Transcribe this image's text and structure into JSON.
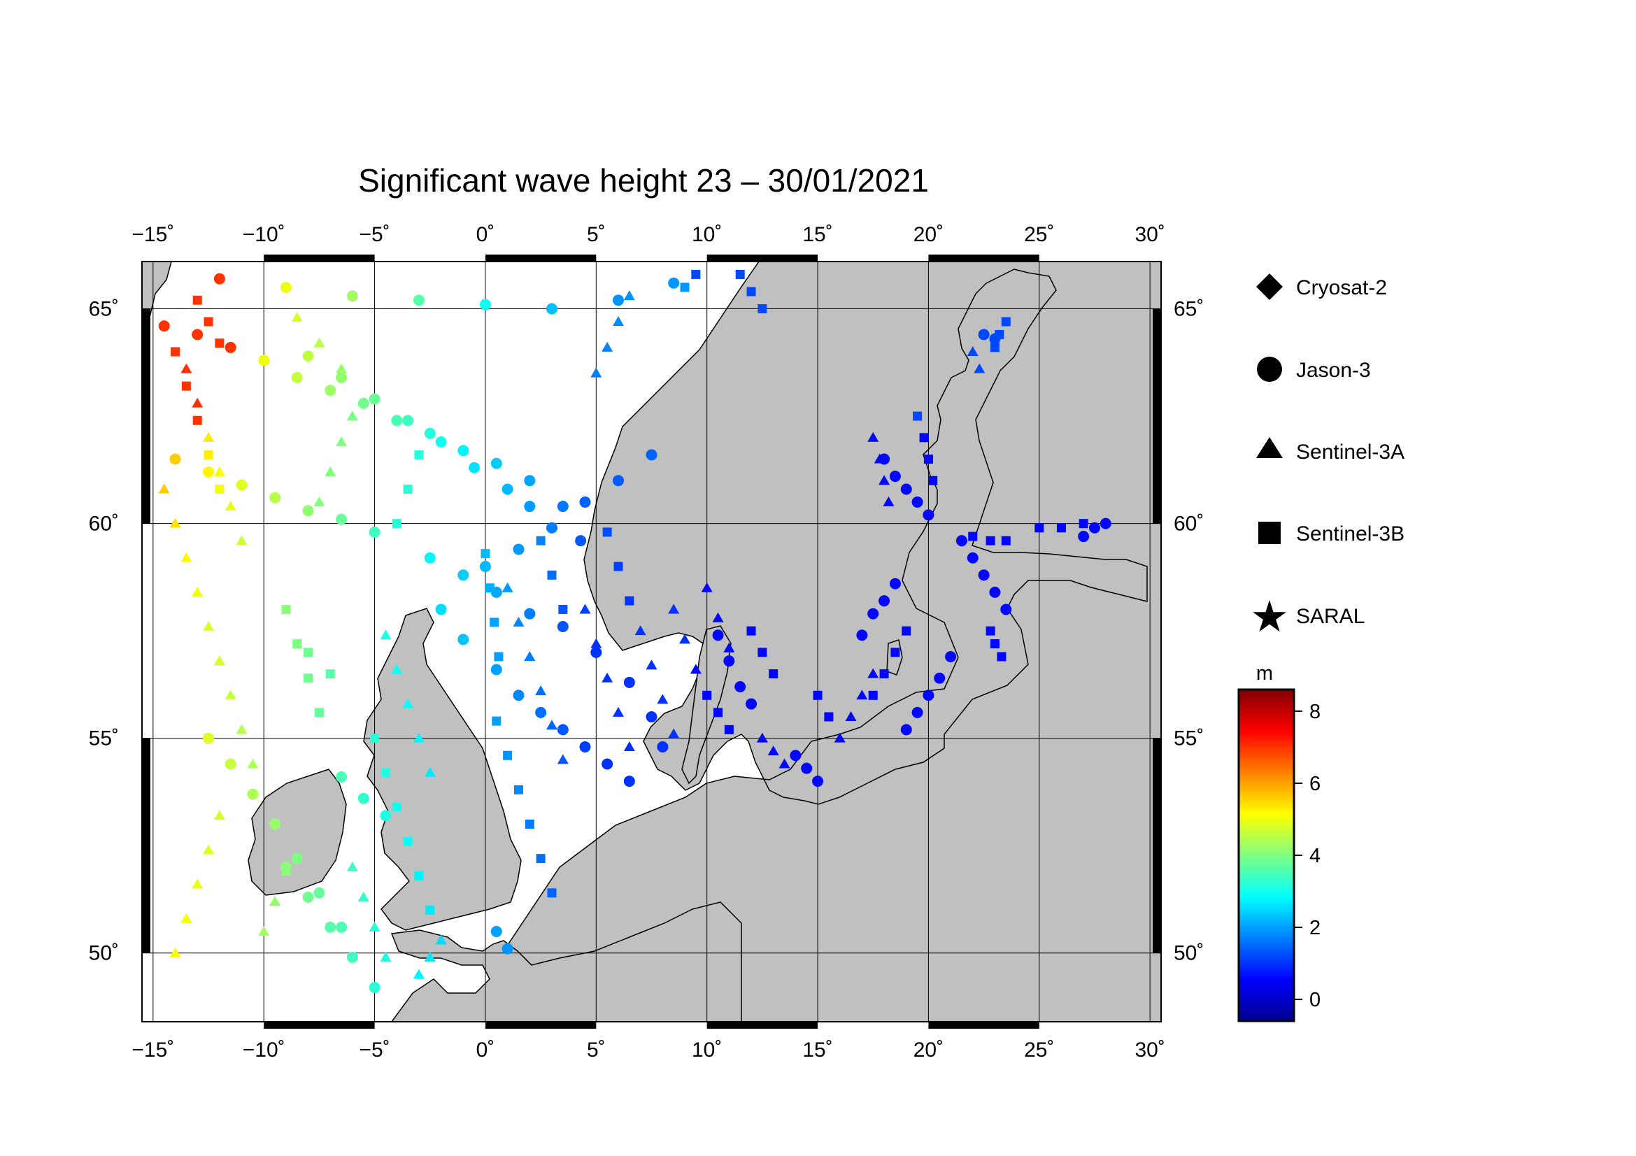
{
  "title": "Significant wave height 23 – 30/01/2021",
  "lon_ticks": [
    {
      "value": -15,
      "label": "−15˚"
    },
    {
      "value": -10,
      "label": "−10˚"
    },
    {
      "value": -5,
      "label": "−5˚"
    },
    {
      "value": 0,
      "label": "0˚"
    },
    {
      "value": 5,
      "label": "5˚"
    },
    {
      "value": 10,
      "label": "10˚"
    },
    {
      "value": 15,
      "label": "15˚"
    },
    {
      "value": 20,
      "label": "20˚"
    },
    {
      "value": 25,
      "label": "25˚"
    },
    {
      "value": 30,
      "label": "30˚"
    }
  ],
  "lat_ticks": [
    {
      "value": 65,
      "label": "65˚"
    },
    {
      "value": 60,
      "label": "60˚"
    },
    {
      "value": 55,
      "label": "55˚"
    },
    {
      "value": 50,
      "label": "50˚"
    }
  ],
  "legend": [
    {
      "label": "Cryosat-2",
      "icon": "diamond-icon"
    },
    {
      "label": "Jason-3",
      "icon": "circle-icon"
    },
    {
      "label": "Sentinel-3A",
      "icon": "triangle-icon"
    },
    {
      "label": "Sentinel-3B",
      "icon": "square-icon"
    },
    {
      "label": "SARAL",
      "icon": "star-icon"
    }
  ],
  "colorbar": {
    "unit": "m",
    "min": -0.6,
    "max": 8.6,
    "ticks": [
      {
        "value": 8,
        "label": "8"
      },
      {
        "value": 6,
        "label": "6"
      },
      {
        "value": 4,
        "label": "4"
      },
      {
        "value": 2,
        "label": "2"
      },
      {
        "value": 0,
        "label": "0"
      }
    ],
    "colors": [
      "#00008f",
      "#0000ff",
      "#0080ff",
      "#00ffff",
      "#80ff80",
      "#ffff00",
      "#ff8000",
      "#ff0000",
      "#800000"
    ]
  },
  "colors": {
    "land": "#c0c0c0",
    "sea": "#ffffff",
    "frame": "#000000"
  },
  "chart_data": {
    "type": "scatter",
    "title": "Significant wave height 23 – 30/01/2021",
    "xlim": [
      -15.5,
      30.5
    ],
    "ylim": [
      48.4,
      66.1
    ],
    "grid": true,
    "legend_position": "right",
    "series": [
      {
        "name": "Cryosat-2",
        "marker": "diamond",
        "points": []
      },
      {
        "name": "SARAL",
        "marker": "star",
        "points": []
      },
      {
        "name": "Jason-3",
        "marker": "circle",
        "points": [
          [
            -14.5,
            64.6
          ],
          [
            -13.0,
            64.4
          ],
          [
            -11.5,
            64.1
          ],
          [
            -10.0,
            63.8
          ],
          [
            -8.5,
            63.4
          ],
          [
            -7.0,
            63.1
          ],
          [
            -5.5,
            62.8
          ],
          [
            -4.0,
            62.4
          ],
          [
            -2.5,
            62.1
          ],
          [
            -1.0,
            61.7
          ],
          [
            0.5,
            61.4
          ],
          [
            2.0,
            61.0
          ],
          [
            3.5,
            60.4
          ],
          [
            4.3,
            59.6
          ],
          [
            -12.0,
            65.7
          ],
          [
            -9.0,
            65.5
          ],
          [
            -6.0,
            65.3
          ],
          [
            -3.0,
            65.2
          ],
          [
            0.0,
            65.1
          ],
          [
            3.0,
            65.0
          ],
          [
            6.0,
            65.2
          ],
          [
            8.5,
            65.6
          ],
          [
            -14.0,
            61.5
          ],
          [
            -12.5,
            61.2
          ],
          [
            -11.0,
            60.9
          ],
          [
            -9.5,
            60.6
          ],
          [
            -8.0,
            60.3
          ],
          [
            -6.5,
            60.1
          ],
          [
            -5.0,
            59.8
          ],
          [
            -2.5,
            59.2
          ],
          [
            -1.0,
            58.8
          ],
          [
            0.5,
            58.4
          ],
          [
            2.0,
            57.9
          ],
          [
            3.5,
            57.6
          ],
          [
            5.0,
            57.0
          ],
          [
            6.5,
            56.3
          ],
          [
            7.5,
            55.5
          ],
          [
            8.0,
            54.8
          ],
          [
            -2.0,
            58.0
          ],
          [
            -1.0,
            57.3
          ],
          [
            0.5,
            56.6
          ],
          [
            1.5,
            56.0
          ],
          [
            2.5,
            55.6
          ],
          [
            3.5,
            55.2
          ],
          [
            4.5,
            54.8
          ],
          [
            5.5,
            54.4
          ],
          [
            6.5,
            54.0
          ],
          [
            -8.0,
            63.9
          ],
          [
            -6.5,
            63.4
          ],
          [
            -5.0,
            62.9
          ],
          [
            -3.5,
            62.4
          ],
          [
            -2.0,
            61.9
          ],
          [
            -0.5,
            61.3
          ],
          [
            1.0,
            60.8
          ],
          [
            2.0,
            60.4
          ],
          [
            0.0,
            59.0
          ],
          [
            1.5,
            59.4
          ],
          [
            3.0,
            59.9
          ],
          [
            4.5,
            60.5
          ],
          [
            6.0,
            61.0
          ],
          [
            7.5,
            61.6
          ],
          [
            10.5,
            57.4
          ],
          [
            11.0,
            56.8
          ],
          [
            11.5,
            56.2
          ],
          [
            12.0,
            55.8
          ],
          [
            14.0,
            54.6
          ],
          [
            14.5,
            54.3
          ],
          [
            15.0,
            54.0
          ],
          [
            17.0,
            57.4
          ],
          [
            17.5,
            57.9
          ],
          [
            18.0,
            58.2
          ],
          [
            18.5,
            58.6
          ],
          [
            18.0,
            61.5
          ],
          [
            18.5,
            61.1
          ],
          [
            19.0,
            60.8
          ],
          [
            19.5,
            60.5
          ],
          [
            20.0,
            60.2
          ],
          [
            21.5,
            59.6
          ],
          [
            22.0,
            59.2
          ],
          [
            22.5,
            58.8
          ],
          [
            23.0,
            58.4
          ],
          [
            23.5,
            58.0
          ],
          [
            27.0,
            59.7
          ],
          [
            27.5,
            59.9
          ],
          [
            28.0,
            60.0
          ],
          [
            22.5,
            64.4
          ],
          [
            23.0,
            64.3
          ],
          [
            -9.0,
            52.0
          ],
          [
            -8.0,
            51.3
          ],
          [
            -7.0,
            50.6
          ],
          [
            -6.0,
            49.9
          ],
          [
            -5.0,
            49.2
          ],
          [
            -12.5,
            55.0
          ],
          [
            -11.5,
            54.4
          ],
          [
            -10.5,
            53.7
          ],
          [
            -9.5,
            53.0
          ],
          [
            -8.5,
            52.2
          ],
          [
            -7.5,
            51.4
          ],
          [
            -6.5,
            50.6
          ],
          [
            0.5,
            50.5
          ],
          [
            1.0,
            50.1
          ],
          [
            -6.5,
            54.1
          ],
          [
            -5.5,
            53.6
          ],
          [
            -4.5,
            53.2
          ],
          [
            19.0,
            55.2
          ],
          [
            19.5,
            55.6
          ],
          [
            20.0,
            56.0
          ],
          [
            20.5,
            56.4
          ],
          [
            21.0,
            56.9
          ]
        ]
      },
      {
        "name": "Sentinel-3A",
        "marker": "triangle",
        "points": [
          [
            -14.5,
            60.8
          ],
          [
            -14.0,
            60.0
          ],
          [
            -13.5,
            59.2
          ],
          [
            -13.0,
            58.4
          ],
          [
            -12.5,
            57.6
          ],
          [
            -12.0,
            56.8
          ],
          [
            -11.5,
            56.0
          ],
          [
            -11.0,
            55.2
          ],
          [
            -10.5,
            54.4
          ],
          [
            -13.5,
            63.6
          ],
          [
            -13.0,
            62.8
          ],
          [
            -12.5,
            62.0
          ],
          [
            -12.0,
            61.2
          ],
          [
            -11.5,
            60.4
          ],
          [
            -11.0,
            59.6
          ],
          [
            -4.5,
            57.4
          ],
          [
            -4.0,
            56.6
          ],
          [
            -3.5,
            55.8
          ],
          [
            -3.0,
            55.0
          ],
          [
            -2.5,
            54.2
          ],
          [
            1.0,
            58.5
          ],
          [
            1.5,
            57.7
          ],
          [
            2.0,
            56.9
          ],
          [
            2.5,
            56.1
          ],
          [
            3.0,
            55.3
          ],
          [
            3.5,
            54.5
          ],
          [
            4.5,
            58.0
          ],
          [
            5.0,
            57.2
          ],
          [
            5.5,
            56.4
          ],
          [
            6.0,
            55.6
          ],
          [
            6.5,
            54.8
          ],
          [
            7.0,
            57.5
          ],
          [
            7.5,
            56.7
          ],
          [
            8.0,
            55.9
          ],
          [
            8.5,
            55.1
          ],
          [
            8.5,
            58.0
          ],
          [
            9.0,
            57.3
          ],
          [
            9.5,
            56.6
          ],
          [
            10.0,
            58.5
          ],
          [
            10.5,
            57.8
          ],
          [
            11.0,
            57.1
          ],
          [
            12.5,
            55.0
          ],
          [
            13.0,
            54.7
          ],
          [
            13.5,
            54.4
          ],
          [
            16.0,
            55.0
          ],
          [
            16.5,
            55.5
          ],
          [
            17.0,
            56.0
          ],
          [
            17.5,
            56.5
          ],
          [
            17.5,
            62.0
          ],
          [
            17.8,
            61.5
          ],
          [
            18.0,
            61.0
          ],
          [
            18.2,
            60.5
          ],
          [
            22.0,
            64.0
          ],
          [
            22.3,
            63.6
          ],
          [
            -3.0,
            49.5
          ],
          [
            -2.5,
            49.9
          ],
          [
            -2.0,
            50.3
          ],
          [
            -6.0,
            52.0
          ],
          [
            -5.5,
            51.3
          ],
          [
            -5.0,
            50.6
          ],
          [
            -4.5,
            49.9
          ],
          [
            -14.0,
            50.0
          ],
          [
            -13.5,
            50.8
          ],
          [
            -13.0,
            51.6
          ],
          [
            -12.5,
            52.4
          ],
          [
            -12.0,
            53.2
          ],
          [
            -10.0,
            50.5
          ],
          [
            -9.5,
            51.2
          ],
          [
            -9.0,
            51.9
          ],
          [
            -7.5,
            60.5
          ],
          [
            -7.0,
            61.2
          ],
          [
            -6.5,
            61.9
          ],
          [
            -6.0,
            62.5
          ],
          [
            5.0,
            63.5
          ],
          [
            5.5,
            64.1
          ],
          [
            6.0,
            64.7
          ],
          [
            6.5,
            65.3
          ],
          [
            -8.5,
            64.8
          ],
          [
            -7.5,
            64.2
          ],
          [
            -6.5,
            63.6
          ]
        ]
      },
      {
        "name": "Sentinel-3B",
        "marker": "square",
        "points": [
          [
            -14.0,
            64.0
          ],
          [
            -13.5,
            63.2
          ],
          [
            -13.0,
            62.4
          ],
          [
            -12.5,
            61.6
          ],
          [
            -12.0,
            60.8
          ],
          [
            -9.0,
            58.0
          ],
          [
            -8.5,
            57.2
          ],
          [
            -8.0,
            56.4
          ],
          [
            -7.5,
            55.6
          ],
          [
            -5.0,
            55.0
          ],
          [
            -4.5,
            54.2
          ],
          [
            -4.0,
            53.4
          ],
          [
            -3.5,
            52.6
          ],
          [
            -3.0,
            51.8
          ],
          [
            -2.5,
            51.0
          ],
          [
            0.5,
            55.4
          ],
          [
            1.0,
            54.6
          ],
          [
            1.5,
            53.8
          ],
          [
            2.0,
            53.0
          ],
          [
            2.5,
            52.2
          ],
          [
            3.0,
            51.4
          ],
          [
            0.0,
            59.3
          ],
          [
            0.2,
            58.5
          ],
          [
            0.4,
            57.7
          ],
          [
            0.6,
            56.9
          ],
          [
            2.5,
            59.6
          ],
          [
            3.0,
            58.8
          ],
          [
            3.5,
            58.0
          ],
          [
            5.5,
            59.8
          ],
          [
            6.0,
            59.0
          ],
          [
            6.5,
            58.2
          ],
          [
            11.5,
            65.8
          ],
          [
            12.0,
            65.4
          ],
          [
            12.5,
            65.0
          ],
          [
            10.0,
            56.0
          ],
          [
            10.5,
            55.6
          ],
          [
            11.0,
            55.2
          ],
          [
            12.0,
            57.5
          ],
          [
            12.5,
            57.0
          ],
          [
            13.0,
            56.5
          ],
          [
            15.0,
            56.0
          ],
          [
            15.5,
            55.5
          ],
          [
            17.5,
            56.0
          ],
          [
            18.0,
            56.5
          ],
          [
            18.5,
            57.0
          ],
          [
            19.0,
            57.5
          ],
          [
            19.5,
            62.5
          ],
          [
            19.8,
            62.0
          ],
          [
            20.0,
            61.5
          ],
          [
            20.2,
            61.0
          ],
          [
            23.5,
            64.7
          ],
          [
            23.2,
            64.4
          ],
          [
            23.0,
            64.1
          ],
          [
            22.0,
            59.7
          ],
          [
            22.8,
            59.6
          ],
          [
            23.5,
            59.6
          ],
          [
            25.0,
            59.9
          ],
          [
            26.0,
            59.9
          ],
          [
            27.0,
            60.0
          ],
          [
            22.8,
            57.5
          ],
          [
            23.0,
            57.2
          ],
          [
            23.3,
            56.9
          ],
          [
            -13.0,
            65.2
          ],
          [
            -12.5,
            64.7
          ],
          [
            -12.0,
            64.2
          ],
          [
            -4.0,
            60.0
          ],
          [
            -3.5,
            60.8
          ],
          [
            -3.0,
            61.6
          ],
          [
            9.0,
            65.5
          ],
          [
            9.5,
            65.8
          ],
          [
            -8.0,
            57.0
          ],
          [
            -7.0,
            56.5
          ]
        ]
      }
    ]
  }
}
